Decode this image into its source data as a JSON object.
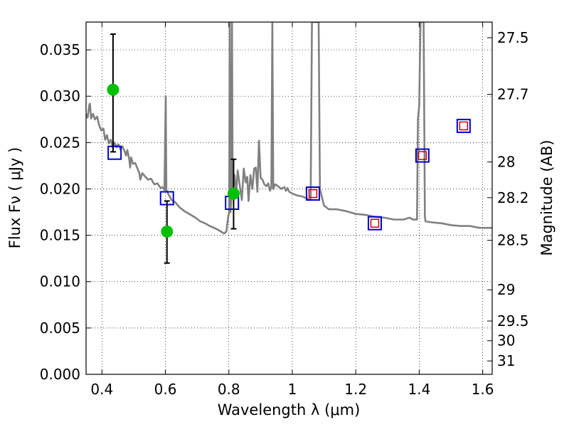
{
  "chart_data": {
    "type": "scatter",
    "xlabel": "Wavelength  λ (μm)",
    "ylabel": "Flux  Fν  ( μJy )",
    "y2label": "Magnitude (AB)",
    "xlim": [
      0.35,
      1.63
    ],
    "ylim": [
      0.0,
      0.038
    ],
    "grid": true,
    "x_ticks": [
      {
        "v": 0.4,
        "label": "0.4"
      },
      {
        "v": 0.6,
        "label": "0.6"
      },
      {
        "v": 0.8,
        "label": "0.8"
      },
      {
        "v": 1.0,
        "label": "1"
      },
      {
        "v": 1.2,
        "label": "1.2"
      },
      {
        "v": 1.4,
        "label": "1.4"
      },
      {
        "v": 1.6,
        "label": "1.6"
      }
    ],
    "y_ticks": [
      {
        "v": 0.0,
        "label": "0.000"
      },
      {
        "v": 0.005,
        "label": "0.005"
      },
      {
        "v": 0.01,
        "label": "0.010"
      },
      {
        "v": 0.015,
        "label": "0.015"
      },
      {
        "v": 0.02,
        "label": "0.020"
      },
      {
        "v": 0.025,
        "label": "0.025"
      },
      {
        "v": 0.03,
        "label": "0.030"
      },
      {
        "v": 0.035,
        "label": "0.035"
      }
    ],
    "mag_ticks": [
      {
        "mag": 27.5,
        "label": "27.5"
      },
      {
        "mag": 27.7,
        "label": "27.7"
      },
      {
        "mag": 28.0,
        "label": "28"
      },
      {
        "mag": 28.2,
        "label": "28.2"
      },
      {
        "mag": 28.5,
        "label": "28.5"
      },
      {
        "mag": 29.0,
        "label": "29"
      },
      {
        "mag": 29.5,
        "label": "29.5"
      },
      {
        "mag": 30.0,
        "label": "30"
      },
      {
        "mag": 31.0,
        "label": "31"
      }
    ],
    "series": [
      {
        "kind": "line",
        "color": "#808080",
        "points": [
          [
            0.35,
            0.0281
          ],
          [
            0.355,
            0.0277
          ],
          [
            0.36,
            0.029
          ],
          [
            0.362,
            0.0292
          ],
          [
            0.366,
            0.0276
          ],
          [
            0.372,
            0.0281
          ],
          [
            0.378,
            0.0275
          ],
          [
            0.385,
            0.0278
          ],
          [
            0.392,
            0.0268
          ],
          [
            0.398,
            0.0263
          ],
          [
            0.405,
            0.0265
          ],
          [
            0.41,
            0.0253
          ],
          [
            0.416,
            0.0258
          ],
          [
            0.422,
            0.0249
          ],
          [
            0.428,
            0.0253
          ],
          [
            0.434,
            0.0245
          ],
          [
            0.44,
            0.025
          ],
          [
            0.446,
            0.0245
          ],
          [
            0.452,
            0.0248
          ],
          [
            0.458,
            0.0243
          ],
          [
            0.464,
            0.0246
          ],
          [
            0.47,
            0.0242
          ],
          [
            0.476,
            0.0236
          ],
          [
            0.48,
            0.0242
          ],
          [
            0.486,
            0.0232
          ],
          [
            0.489,
            0.0223
          ],
          [
            0.492,
            0.0234
          ],
          [
            0.498,
            0.0227
          ],
          [
            0.505,
            0.0228
          ],
          [
            0.512,
            0.0222
          ],
          [
            0.518,
            0.0217
          ],
          [
            0.521,
            0.021
          ],
          [
            0.527,
            0.0217
          ],
          [
            0.535,
            0.0214
          ],
          [
            0.545,
            0.021
          ],
          [
            0.555,
            0.0211
          ],
          [
            0.565,
            0.0205
          ],
          [
            0.575,
            0.0206
          ],
          [
            0.585,
            0.0201
          ],
          [
            0.59,
            0.0202
          ],
          [
            0.597,
            0.0199
          ],
          [
            0.601,
            0.03
          ],
          [
            0.603,
            0.0199
          ],
          [
            0.61,
            0.0194
          ],
          [
            0.62,
            0.0188
          ],
          [
            0.63,
            0.0186
          ],
          [
            0.645,
            0.018
          ],
          [
            0.66,
            0.0176
          ],
          [
            0.68,
            0.0172
          ],
          [
            0.695,
            0.0169
          ],
          [
            0.71,
            0.0165
          ],
          [
            0.725,
            0.0163
          ],
          [
            0.74,
            0.016
          ],
          [
            0.76,
            0.0157
          ],
          [
            0.775,
            0.0154
          ],
          [
            0.785,
            0.0152
          ],
          [
            0.792,
            0.0154
          ],
          [
            0.798,
            0.017
          ],
          [
            0.801,
            0.0175
          ],
          [
            0.803,
            0.038
          ],
          [
            0.805,
            0.0175
          ],
          [
            0.808,
            0.019
          ],
          [
            0.81,
            0.038
          ],
          [
            0.812,
            0.0195
          ],
          [
            0.818,
            0.0215
          ],
          [
            0.823,
            0.0195
          ],
          [
            0.828,
            0.022
          ],
          [
            0.835,
            0.0202
          ],
          [
            0.841,
            0.0188
          ],
          [
            0.847,
            0.0222
          ],
          [
            0.853,
            0.0207
          ],
          [
            0.858,
            0.0213
          ],
          [
            0.862,
            0.0187
          ],
          [
            0.868,
            0.0215
          ],
          [
            0.874,
            0.02
          ],
          [
            0.88,
            0.0222
          ],
          [
            0.885,
            0.0223
          ],
          [
            0.89,
            0.0197
          ],
          [
            0.895,
            0.0252
          ],
          [
            0.9,
            0.0212
          ],
          [
            0.906,
            0.021
          ],
          [
            0.912,
            0.0205
          ],
          [
            0.918,
            0.0203
          ],
          [
            0.924,
            0.0206
          ],
          [
            0.93,
            0.0198
          ],
          [
            0.934,
            0.0202
          ],
          [
            0.937,
            0.038
          ],
          [
            0.94,
            0.02
          ],
          [
            0.946,
            0.0205
          ],
          [
            0.955,
            0.0203
          ],
          [
            0.965,
            0.02
          ],
          [
            0.975,
            0.0202
          ],
          [
            0.98,
            0.0198
          ],
          [
            0.985,
            0.0201
          ],
          [
            0.99,
            0.0197
          ],
          [
            1.0,
            0.0195
          ],
          [
            1.015,
            0.0193
          ],
          [
            1.03,
            0.0192
          ],
          [
            1.045,
            0.019
          ],
          [
            1.055,
            0.0188
          ],
          [
            1.058,
            0.019
          ],
          [
            1.062,
            0.038
          ],
          [
            1.072,
            0.038
          ],
          [
            1.076,
            0.038
          ],
          [
            1.083,
            0.038
          ],
          [
            1.087,
            0.02
          ],
          [
            1.092,
            0.0193
          ],
          [
            1.1,
            0.0182
          ],
          [
            1.115,
            0.0178
          ],
          [
            1.14,
            0.0178
          ],
          [
            1.17,
            0.0176
          ],
          [
            1.2,
            0.0173
          ],
          [
            1.23,
            0.0172
          ],
          [
            1.26,
            0.017
          ],
          [
            1.29,
            0.0169
          ],
          [
            1.32,
            0.0167
          ],
          [
            1.35,
            0.0167
          ],
          [
            1.37,
            0.0169
          ],
          [
            1.38,
            0.0167
          ],
          [
            1.393,
            0.0167
          ],
          [
            1.396,
            0.0275
          ],
          [
            1.4,
            0.029
          ],
          [
            1.404,
            0.038
          ],
          [
            1.414,
            0.038
          ],
          [
            1.418,
            0.017
          ],
          [
            1.42,
            0.0165
          ],
          [
            1.44,
            0.0164
          ],
          [
            1.47,
            0.0163
          ],
          [
            1.5,
            0.0161
          ],
          [
            1.53,
            0.016
          ],
          [
            1.56,
            0.016
          ],
          [
            1.59,
            0.0158
          ],
          [
            1.61,
            0.0158
          ],
          [
            1.63,
            0.0158
          ]
        ]
      },
      {
        "kind": "square-blue",
        "color": "#0000cc",
        "points": [
          [
            0.44,
            0.0239
          ],
          [
            0.605,
            0.019
          ],
          [
            0.81,
            0.0185
          ],
          [
            1.065,
            0.0195
          ],
          [
            1.26,
            0.0163
          ],
          [
            1.41,
            0.0236
          ],
          [
            1.54,
            0.0268
          ]
        ]
      },
      {
        "kind": "square-red",
        "color": "#cc0000",
        "points": [
          [
            1.065,
            0.0195
          ],
          [
            1.26,
            0.0163
          ],
          [
            1.41,
            0.0236
          ],
          [
            1.54,
            0.0268
          ]
        ]
      },
      {
        "kind": "circle-errorbar",
        "color": "#00c000",
        "points": [
          {
            "x": 0.435,
            "y": 0.0307,
            "ylo": 0.024,
            "yhi": 0.0367
          },
          {
            "x": 0.605,
            "y": 0.0154,
            "ylo": 0.012,
            "yhi": 0.0187
          },
          {
            "x": 0.815,
            "y": 0.0195,
            "ylo": 0.0157,
            "yhi": 0.0232
          }
        ]
      }
    ]
  }
}
